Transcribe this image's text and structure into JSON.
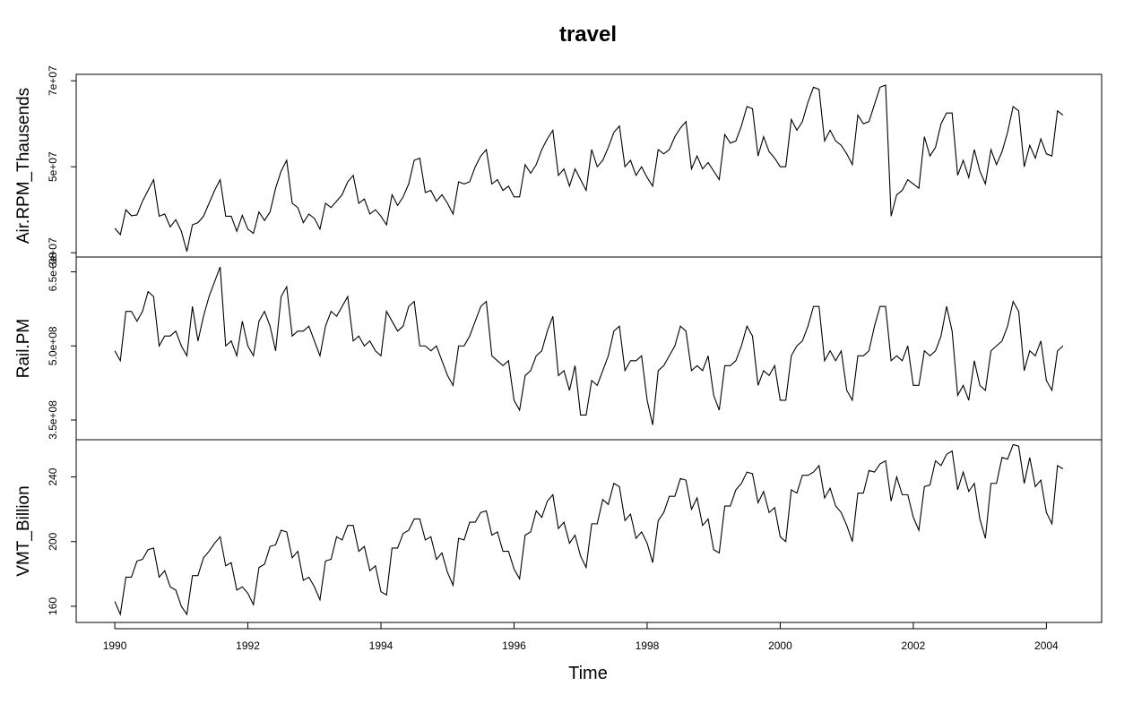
{
  "chart_data": {
    "type": "line",
    "title": "travel",
    "xlabel": "Time",
    "x_ticks": [
      "1990",
      "1992",
      "1994",
      "1996",
      "1998",
      "2000",
      "2002",
      "2004"
    ],
    "start": 1990,
    "frequency": 12,
    "xlim": [
      1989.42,
      2004.83
    ],
    "grid": false,
    "legend": "none",
    "panels": [
      {
        "name": "Air.RPM_Thausends",
        "ylim": [
          29000000,
          71500000
        ],
        "y_ticks": [
          30000000,
          50000000,
          70000000
        ],
        "y_tick_labels": [
          "3e+07",
          "5e+07",
          "7e+07"
        ],
        "values": [
          35700000,
          34200000,
          40000000,
          38600000,
          38800000,
          42000000,
          44500000,
          47000000,
          38500000,
          39000000,
          36000000,
          37700000,
          35000000,
          30300000,
          36500000,
          37000000,
          38500000,
          41500000,
          44500000,
          47000000,
          38500000,
          38500000,
          35000000,
          38700000,
          35500000,
          34500000,
          39500000,
          37500000,
          39500000,
          45000000,
          49000000,
          51500000,
          41500000,
          40500000,
          37000000,
          39000000,
          38000000,
          35500000,
          41500000,
          40500000,
          42000000,
          43500000,
          46500000,
          48000000,
          41500000,
          42500000,
          39000000,
          40000000,
          38500000,
          36500000,
          43500000,
          41000000,
          43000000,
          46000000,
          51500000,
          52000000,
          44000000,
          44500000,
          42000000,
          43500000,
          41500000,
          39000000,
          46500000,
          46000000,
          46500000,
          50000000,
          52500000,
          54000000,
          46000000,
          47000000,
          44500000,
          45500000,
          43000000,
          43000000,
          50500000,
          48500000,
          50500000,
          54000000,
          56500000,
          58500000,
          48000000,
          49500000,
          45500000,
          49500000,
          47000000,
          44500000,
          54000000,
          50000000,
          51500000,
          54500000,
          58000000,
          59500000,
          50000000,
          51500000,
          48000000,
          50000000,
          47500000,
          45500000,
          54000000,
          53000000,
          54000000,
          57000000,
          59000000,
          60500000,
          49500000,
          52500000,
          49500000,
          51000000,
          49000000,
          47000000,
          57500000,
          55500000,
          56000000,
          59500000,
          64000000,
          63500000,
          52500000,
          57000000,
          53500000,
          52000000,
          50000000,
          50000000,
          61000000,
          58500000,
          60500000,
          65000000,
          68500000,
          68000000,
          56000000,
          58500000,
          56000000,
          55000000,
          53000000,
          50500000,
          62000000,
          60000000,
          60500000,
          64500000,
          68500000,
          69000000,
          38500000,
          43500000,
          44500000,
          47000000,
          46000000,
          45000000,
          57000000,
          52500000,
          54500000,
          60000000,
          62500000,
          62500000,
          48000000,
          51500000,
          47500000,
          54000000,
          49000000,
          46000000,
          54000000,
          50500000,
          53500000,
          58000000,
          64000000,
          63000000,
          50000000,
          55000000,
          52000000,
          56500000,
          53000000,
          52500000,
          63000000,
          62000000
        ]
      },
      {
        "name": "Rail.PM",
        "ylim": [
          310000000,
          680000000
        ],
        "y_ticks": [
          350000000,
          500000000,
          650000000
        ],
        "y_tick_labels": [
          "3.5e+08",
          "5.0e+08",
          "6.5e+08"
        ],
        "values": [
          490000000,
          470000000,
          570000000,
          570000000,
          550000000,
          570000000,
          610000000,
          600000000,
          500000000,
          520000000,
          520000000,
          530000000,
          500000000,
          480000000,
          580000000,
          510000000,
          560000000,
          600000000,
          630000000,
          660000000,
          500000000,
          510000000,
          480000000,
          550000000,
          500000000,
          480000000,
          550000000,
          570000000,
          540000000,
          490000000,
          600000000,
          620000000,
          520000000,
          530000000,
          530000000,
          540000000,
          510000000,
          480000000,
          540000000,
          570000000,
          560000000,
          580000000,
          600000000,
          510000000,
          520000000,
          500000000,
          510000000,
          490000000,
          480000000,
          570000000,
          550000000,
          530000000,
          540000000,
          580000000,
          590000000,
          500000000,
          500000000,
          490000000,
          500000000,
          470000000,
          440000000,
          420000000,
          500000000,
          500000000,
          520000000,
          550000000,
          580000000,
          590000000,
          480000000,
          470000000,
          460000000,
          470000000,
          390000000,
          370000000,
          440000000,
          450000000,
          480000000,
          490000000,
          530000000,
          560000000,
          440000000,
          450000000,
          410000000,
          460000000,
          360000000,
          360000000,
          430000000,
          420000000,
          450000000,
          480000000,
          530000000,
          540000000,
          450000000,
          470000000,
          470000000,
          480000000,
          390000000,
          340000000,
          450000000,
          460000000,
          480000000,
          500000000,
          540000000,
          530000000,
          450000000,
          460000000,
          450000000,
          480000000,
          400000000,
          370000000,
          460000000,
          460000000,
          470000000,
          500000000,
          540000000,
          520000000,
          420000000,
          450000000,
          440000000,
          460000000,
          390000000,
          390000000,
          480000000,
          500000000,
          510000000,
          540000000,
          580000000,
          580000000,
          470000000,
          490000000,
          470000000,
          490000000,
          410000000,
          390000000,
          480000000,
          480000000,
          490000000,
          540000000,
          580000000,
          580000000,
          470000000,
          480000000,
          470000000,
          500000000,
          420000000,
          420000000,
          490000000,
          480000000,
          490000000,
          520000000,
          580000000,
          530000000,
          400000000,
          420000000,
          390000000,
          470000000,
          420000000,
          410000000,
          490000000,
          500000000,
          510000000,
          540000000,
          590000000,
          570000000,
          450000000,
          490000000,
          480000000,
          510000000,
          430000000,
          410000000,
          490000000,
          500000000
        ]
      },
      {
        "name": "VMT_Billion",
        "ylim": [
          150,
          263
        ],
        "y_ticks": [
          160,
          200,
          240
        ],
        "y_tick_labels": [
          "160",
          "200",
          "240"
        ],
        "values": [
          163,
          155,
          178,
          178,
          188,
          189,
          195,
          196,
          178,
          182,
          172,
          170,
          160,
          155,
          179,
          179,
          190,
          194,
          199,
          203,
          185,
          187,
          170,
          172,
          168,
          161,
          184,
          186,
          197,
          198,
          207,
          206,
          190,
          194,
          176,
          178,
          172,
          164,
          188,
          189,
          203,
          201,
          210,
          210,
          194,
          197,
          182,
          185,
          169,
          167,
          196,
          196,
          205,
          207,
          214,
          214,
          201,
          203,
          189,
          193,
          181,
          173,
          202,
          201,
          212,
          212,
          218,
          219,
          204,
          206,
          194,
          194,
          183,
          177,
          204,
          206,
          219,
          215,
          225,
          229,
          208,
          212,
          199,
          204,
          191,
          184,
          211,
          211,
          226,
          223,
          236,
          234,
          213,
          217,
          202,
          206,
          199,
          187,
          213,
          218,
          228,
          228,
          239,
          238,
          220,
          227,
          210,
          214,
          195,
          193,
          222,
          222,
          232,
          236,
          243,
          242,
          224,
          231,
          218,
          221,
          203,
          200,
          232,
          230,
          241,
          241,
          243,
          247,
          227,
          233,
          222,
          218,
          210,
          200,
          230,
          230,
          244,
          243,
          248,
          250,
          225,
          240,
          229,
          229,
          215,
          207,
          234,
          235,
          250,
          247,
          254,
          256,
          232,
          243,
          231,
          236,
          214,
          202,
          236,
          236,
          252,
          251,
          260,
          259,
          236,
          252,
          234,
          238,
          218,
          211,
          247,
          245
        ]
      }
    ]
  }
}
